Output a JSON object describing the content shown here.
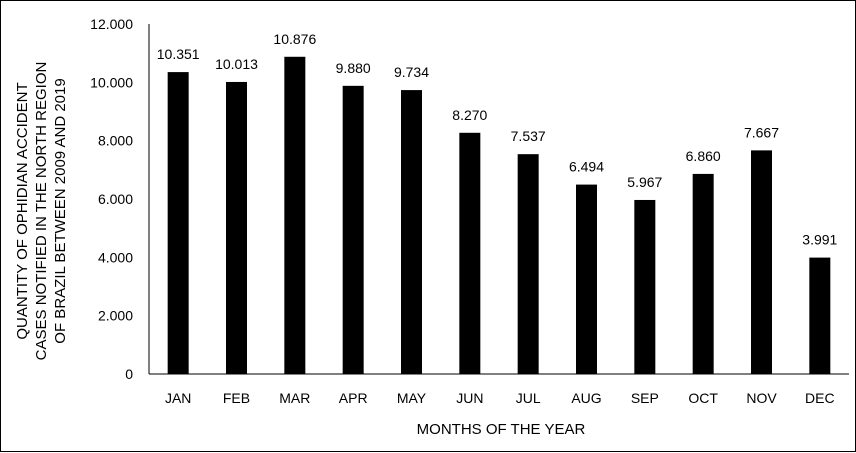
{
  "chart_data": {
    "type": "bar",
    "categories": [
      "JAN",
      "FEB",
      "MAR",
      "APR",
      "MAY",
      "JUN",
      "JUL",
      "AUG",
      "SEP",
      "OCT",
      "NOV",
      "DEC"
    ],
    "values": [
      10351,
      10013,
      10876,
      9880,
      9734,
      8270,
      7537,
      6494,
      5967,
      6860,
      7667,
      3991
    ],
    "data_labels": [
      "10.351",
      "10.013",
      "10.876",
      "9.880",
      "9.734",
      "8.270",
      "7.537",
      "6.494",
      "5.967",
      "6.860",
      "7.667",
      "3.991"
    ],
    "y_ticks": [
      0,
      2000,
      4000,
      6000,
      8000,
      10000,
      12000
    ],
    "y_tick_labels": [
      "0",
      "2.000",
      "4.000",
      "6.000",
      "8.000",
      "10.000",
      "12.000"
    ],
    "xlabel": "MONTHS OF THE YEAR",
    "ylabel_lines": [
      "QUANTITY OF OPHIDIAN ACCIDENT",
      "CASES NOTIFIED IN THE NORTH REGION",
      "OF BRAZIL BETWEEN 2009 AND 2019"
    ],
    "ylim": [
      0,
      12000
    ],
    "grid": false,
    "legend": "none",
    "bar_color": "#000000"
  }
}
